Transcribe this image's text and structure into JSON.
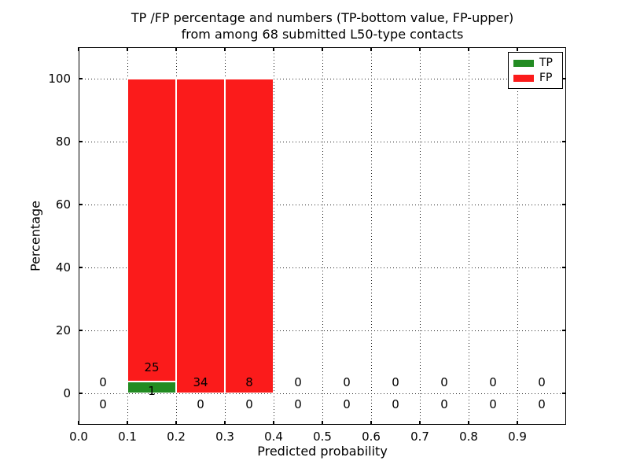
{
  "figure": {
    "title_line1": "TP /FP percentage and numbers (TP-bottom value, FP-upper)",
    "title_line2": "from among 68 submitted L50-type contacts"
  },
  "legend": {
    "items": [
      {
        "label": "TP",
        "color": "#228b22"
      },
      {
        "label": "FP",
        "color": "#fb1b1b"
      }
    ]
  },
  "chart_data": {
    "type": "bar",
    "stacked": true,
    "title": "TP /FP percentage and numbers (TP-bottom value, FP-upper)\nfrom among 68 submitted L50-type contacts",
    "xlabel": "Predicted probability",
    "ylabel": "Percentage",
    "xlim": [
      0.0,
      1.0
    ],
    "ylim": [
      -10,
      110
    ],
    "x_ticks": [
      "0.0",
      "0.1",
      "0.2",
      "0.3",
      "0.4",
      "0.5",
      "0.6",
      "0.7",
      "0.8",
      "0.9"
    ],
    "y_ticks": [
      0,
      20,
      40,
      60,
      80,
      100
    ],
    "grid": "dotted",
    "legend_position": "upper right",
    "total_contacts": 68,
    "bin_edges": [
      0.0,
      0.1,
      0.2,
      0.3,
      0.4,
      0.5,
      0.6,
      0.7,
      0.8,
      0.9,
      1.0
    ],
    "bin_centers": [
      0.05,
      0.15,
      0.25,
      0.35,
      0.45,
      0.55,
      0.65,
      0.75,
      0.85,
      0.95
    ],
    "series": [
      {
        "name": "TP",
        "color": "#228b22",
        "counts": [
          0,
          1,
          0,
          0,
          0,
          0,
          0,
          0,
          0,
          0
        ],
        "percentages": [
          0,
          3.85,
          0,
          0,
          0,
          0,
          0,
          0,
          0,
          0
        ]
      },
      {
        "name": "FP",
        "color": "#fb1b1b",
        "counts": [
          0,
          25,
          34,
          8,
          0,
          0,
          0,
          0,
          0,
          0
        ],
        "percentages": [
          0,
          96.15,
          100,
          100,
          0,
          0,
          0,
          0,
          0,
          0
        ]
      }
    ],
    "bars": [
      {
        "series": "TP",
        "x0": 0.1,
        "x1": 0.2,
        "y0": 0,
        "y1": 3.85
      },
      {
        "series": "FP",
        "x0": 0.1,
        "x1": 0.2,
        "y0": 3.85,
        "y1": 100
      },
      {
        "series": "FP",
        "x0": 0.2,
        "x1": 0.3,
        "y0": 0,
        "y1": 100
      },
      {
        "series": "FP",
        "x0": 0.3,
        "x1": 0.4,
        "y0": 0,
        "y1": 100
      }
    ],
    "value_labels": [
      {
        "x": 0.05,
        "y": 3.5,
        "text": "0"
      },
      {
        "x": 0.15,
        "y": 8.25,
        "text": "25"
      },
      {
        "x": 0.25,
        "y": 3.5,
        "text": "34"
      },
      {
        "x": 0.35,
        "y": 3.5,
        "text": "8"
      },
      {
        "x": 0.45,
        "y": 3.5,
        "text": "0"
      },
      {
        "x": 0.55,
        "y": 3.5,
        "text": "0"
      },
      {
        "x": 0.65,
        "y": 3.5,
        "text": "0"
      },
      {
        "x": 0.75,
        "y": 3.5,
        "text": "0"
      },
      {
        "x": 0.85,
        "y": 3.5,
        "text": "0"
      },
      {
        "x": 0.95,
        "y": 3.5,
        "text": "0"
      },
      {
        "x": 0.05,
        "y": -3.5,
        "text": "0"
      },
      {
        "x": 0.15,
        "y": 0.75,
        "text": "1"
      },
      {
        "x": 0.25,
        "y": -3.5,
        "text": "0"
      },
      {
        "x": 0.35,
        "y": -3.5,
        "text": "0"
      },
      {
        "x": 0.45,
        "y": -3.5,
        "text": "0"
      },
      {
        "x": 0.55,
        "y": -3.5,
        "text": "0"
      },
      {
        "x": 0.65,
        "y": -3.5,
        "text": "0"
      },
      {
        "x": 0.75,
        "y": -3.5,
        "text": "0"
      },
      {
        "x": 0.85,
        "y": -3.5,
        "text": "0"
      },
      {
        "x": 0.95,
        "y": -3.5,
        "text": "0"
      }
    ]
  }
}
